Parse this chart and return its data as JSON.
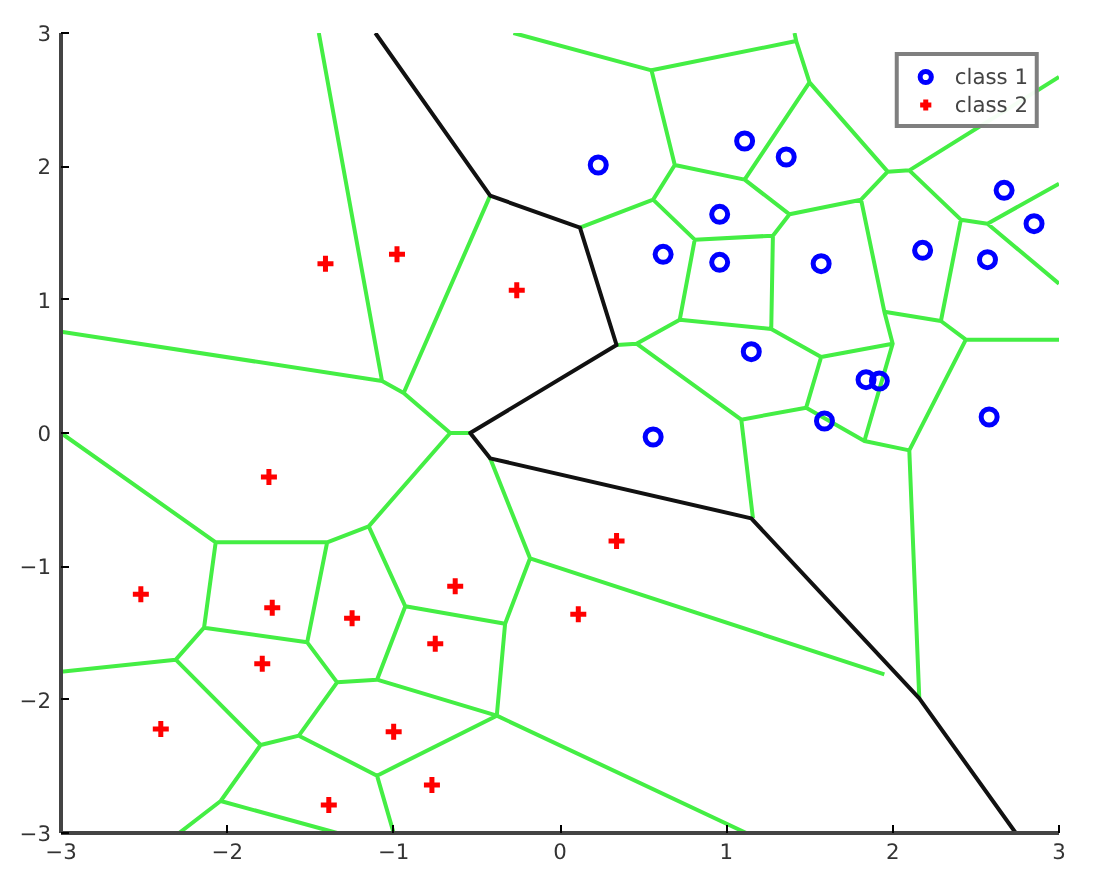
{
  "chart_data": {
    "type": "scatter",
    "xlim": [
      -3,
      3
    ],
    "ylim": [
      -3,
      3
    ],
    "xticks": [
      -3,
      -2,
      -1,
      0,
      1,
      2,
      3
    ],
    "yticks": [
      -3,
      -2,
      -1,
      0,
      1,
      2,
      3
    ],
    "grid": false,
    "legend": "top right",
    "series": [
      {
        "type": "line",
        "color": "#44ee44",
        "line_style": "solid",
        "x": [
          -3,
          -1.07,
          null,
          -1.45,
          -1.07,
          null,
          -1.07,
          -0.94,
          null,
          -0.42,
          -0.94,
          null,
          -0.94,
          -0.66,
          -0.54,
          null,
          -3,
          -2.07,
          null,
          -0.66,
          -1.15,
          null,
          -2.07,
          -1.4,
          -1.15,
          null,
          -2.07,
          -2.14,
          -1.52,
          -1.4,
          null,
          -2.14,
          -2.31,
          -3,
          null,
          -1.15,
          -0.93,
          -0.33,
          null,
          -0.93,
          -1.1,
          null,
          -1.52,
          -1.34,
          -1.1,
          -0.38,
          -0.33,
          -0.18,
          -0.42,
          null,
          -0.18,
          1.95,
          null,
          -0.38,
          1.12,
          null,
          -2.31,
          -1.8,
          -1.57,
          -1.34,
          null,
          -1.57,
          -1.1,
          -0.38,
          null,
          -1.1,
          -1.0,
          null,
          -1.8,
          -2.04,
          -2.29,
          null,
          -2.04,
          -1.34,
          null,
          -0.28,
          0.55,
          1.42,
          1.41,
          null,
          1.42,
          1.5,
          1.97,
          2.1,
          3,
          null,
          0.55,
          0.69,
          1.11,
          1.5,
          null,
          2.1,
          2.41,
          2.57,
          3,
          null,
          2.57,
          3,
          null,
          2.41,
          2.29,
          2.44,
          3,
          null,
          2.44,
          2.1,
          2.16,
          null,
          1.97,
          1.81,
          1.38,
          1.11,
          null,
          0.69,
          0.56,
          0.12,
          null,
          0.56,
          0.81,
          1.28,
          1.38,
          null,
          0.81,
          0.72,
          1.27,
          1.28,
          null,
          0.72,
          0.46,
          0.34,
          null,
          1.81,
          1.95,
          2.29,
          null,
          1.27,
          1.57,
          2.0,
          1.95,
          null,
          2.0,
          1.83,
          2.1,
          null,
          1.57,
          1.48,
          1.83,
          null,
          1.48,
          1.09,
          1.16,
          null,
          0.46,
          1.09
        ],
        "values": [
          0.76,
          0.39,
          null,
          3,
          0.39,
          null,
          0.39,
          0.3,
          null,
          1.78,
          0.3,
          null,
          0.3,
          0.0,
          0.0,
          null,
          0,
          -0.82,
          null,
          0,
          -0.7,
          null,
          -0.82,
          -0.82,
          -0.7,
          null,
          -0.82,
          -1.46,
          -1.57,
          -0.82,
          null,
          -1.46,
          -1.7,
          -1.79,
          null,
          -0.7,
          -1.3,
          -1.43,
          null,
          -1.3,
          -1.85,
          null,
          -1.57,
          -1.87,
          -1.85,
          -2.12,
          -1.43,
          -0.94,
          -0.19,
          null,
          -0.94,
          -1.81,
          null,
          -2.12,
          -3,
          null,
          -1.7,
          -2.34,
          -2.27,
          -1.87,
          null,
          -2.27,
          -2.57,
          -2.12,
          null,
          -2.57,
          -3,
          null,
          -2.34,
          -2.76,
          -3,
          null,
          -2.76,
          -3,
          null,
          3,
          2.72,
          2.94,
          3,
          null,
          2.94,
          2.63,
          1.96,
          1.97,
          2.67,
          null,
          2.72,
          2.01,
          1.9,
          2.63,
          null,
          1.97,
          1.6,
          1.57,
          1.87,
          null,
          1.57,
          1.12,
          null,
          1.6,
          0.84,
          0.7,
          0.7,
          null,
          0.7,
          -0.13,
          -1.99,
          null,
          1.96,
          1.75,
          1.64,
          1.9,
          null,
          2.01,
          1.75,
          1.54,
          null,
          1.75,
          1.45,
          1.48,
          1.64,
          null,
          1.45,
          0.85,
          0.78,
          1.48,
          null,
          0.85,
          0.67,
          0.66,
          null,
          1.75,
          0.91,
          0.84,
          null,
          0.78,
          0.57,
          0.67,
          0.91,
          null,
          0.67,
          -0.06,
          -0.13,
          null,
          0.57,
          0.19,
          -0.06,
          null,
          0.19,
          0.1,
          -0.64,
          null,
          0.67,
          0.1
        ]
      },
      {
        "type": "line",
        "color": "#111111",
        "line_style": "solid",
        "x": [
          -1.11,
          -0.42,
          0.12,
          0.34,
          -0.54,
          -0.42,
          1.15,
          2.16,
          2.74
        ],
        "values": [
          3,
          1.78,
          1.54,
          0.66,
          0.0,
          -0.19,
          -0.64,
          -1.99,
          -3
        ]
      },
      {
        "name": "class 1",
        "color": "#0000ff",
        "marker": "circle",
        "x": [
          0.23,
          1.11,
          1.36,
          0.96,
          2.67,
          2.85,
          0.62,
          0.96,
          1.57,
          2.18,
          2.57,
          1.15,
          1.84,
          1.92,
          0.56,
          1.59,
          2.58
        ],
        "values": [
          2.01,
          2.19,
          2.07,
          1.64,
          1.82,
          1.57,
          1.34,
          1.28,
          1.27,
          1.37,
          1.3,
          0.61,
          0.4,
          0.39,
          -0.03,
          0.09,
          0.12
        ]
      },
      {
        "name": "class 2",
        "color": "#ff0000",
        "marker": "cross",
        "x": [
          -1.41,
          -0.98,
          -0.26,
          -1.75,
          -2.52,
          -1.73,
          -1.25,
          -0.63,
          -1.79,
          -0.75,
          0.34,
          0.11,
          -2.4,
          -1.0,
          -0.77,
          -1.39
        ],
        "values": [
          1.27,
          1.34,
          1.07,
          -0.33,
          -1.21,
          -1.31,
          -1.39,
          -1.15,
          -1.73,
          -1.58,
          -0.81,
          -1.36,
          -2.22,
          -2.24,
          -2.64,
          -2.79
        ]
      }
    ]
  }
}
